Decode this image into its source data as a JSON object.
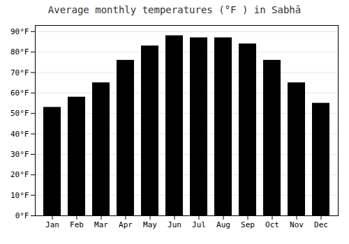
{
  "chart_data": {
    "type": "bar",
    "title": "Average monthly temperatures (°F ) in Sabhā",
    "categories": [
      "Jan",
      "Feb",
      "Mar",
      "Apr",
      "May",
      "Jun",
      "Jul",
      "Aug",
      "Sep",
      "Oct",
      "Nov",
      "Dec"
    ],
    "values": [
      53,
      58,
      65,
      76,
      83,
      88,
      87,
      87,
      84,
      76,
      65,
      55
    ],
    "ylim": [
      0,
      93
    ],
    "yticks": [
      {
        "value": 0,
        "label": "0°F"
      },
      {
        "value": 10,
        "label": "10°F"
      },
      {
        "value": 20,
        "label": "20°F"
      },
      {
        "value": 30,
        "label": "30°F"
      },
      {
        "value": 40,
        "label": "40°F"
      },
      {
        "value": 50,
        "label": "50°F"
      },
      {
        "value": 60,
        "label": "60°F"
      },
      {
        "value": 70,
        "label": "70°F"
      },
      {
        "value": 80,
        "label": "80°F"
      },
      {
        "value": 90,
        "label": "90°F"
      }
    ],
    "grid": true
  }
}
